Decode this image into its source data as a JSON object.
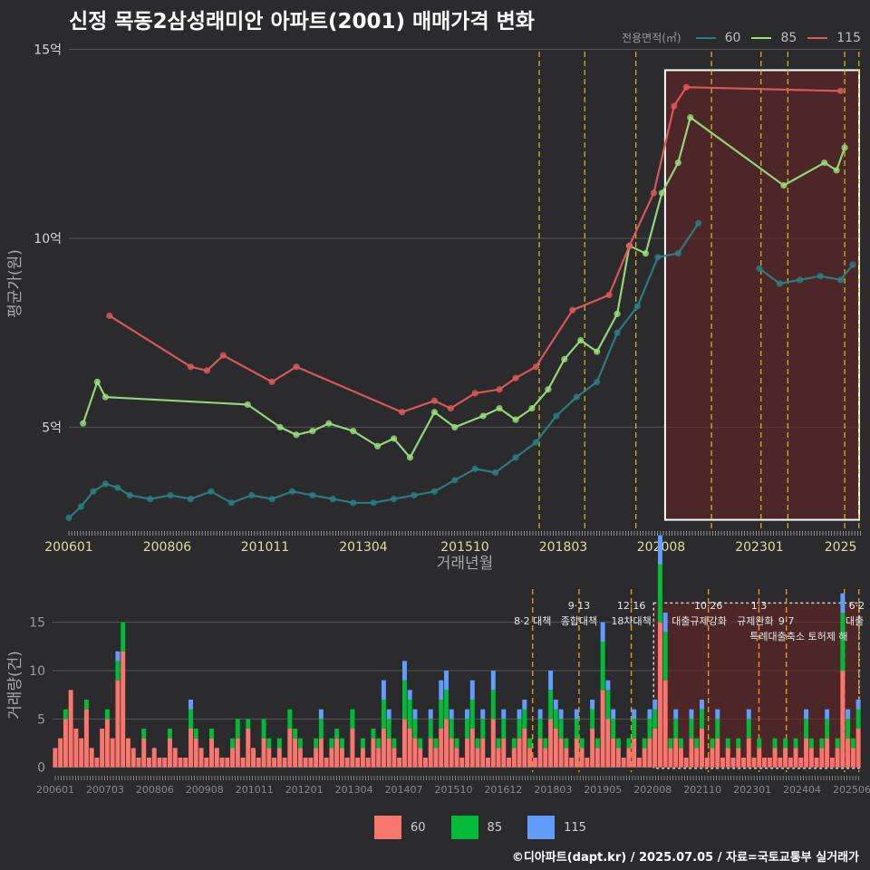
{
  "title": "신정 목동2삼성래미안 아파트(2001) 매매가격 변화",
  "legend_area": {
    "title": "전용면적(㎡)",
    "items": [
      {
        "label": "60",
        "color": "#2a7f85"
      },
      {
        "label": "85",
        "color": "#9ade7a"
      },
      {
        "label": "115",
        "color": "#e05a5a"
      }
    ]
  },
  "legend_volume": {
    "items": [
      {
        "label": "60",
        "color": "#f8766d"
      },
      {
        "label": "85",
        "color": "#00ba38"
      },
      {
        "label": "115",
        "color": "#619cff"
      }
    ]
  },
  "footer": "©디아파트(dapt.kr) / 2025.07.05 / 자료=국토교통부 실거래가",
  "chart_data": [
    {
      "type": "line",
      "name": "price",
      "xlabel": "거래년월",
      "ylabel": "평균가(원)",
      "x_tick_labels": [
        "200601",
        "200806",
        "201011",
        "201304",
        "201510",
        "201803",
        "202008",
        "202301",
        "2025"
      ],
      "x_tick_years": [
        2006.0,
        2008.42,
        2010.83,
        2013.25,
        2015.75,
        2018.17,
        2020.58,
        2023.0,
        2025.0
      ],
      "xlim": [
        2006.0,
        2025.5
      ],
      "y_ticks": [
        5,
        10,
        15
      ],
      "y_tick_labels": [
        "5억",
        "10억",
        "15억"
      ],
      "ylim": [
        2.3,
        15.3
      ],
      "highlight_period": [
        2020.5,
        2025.5
      ],
      "policy_lines": [
        2017.58,
        2018.7,
        2019.96,
        2021.82,
        2023.04,
        2023.7,
        2025.1,
        2025.45
      ],
      "series": [
        {
          "name": "60",
          "x": [
            2006.0,
            2006.3,
            2006.6,
            2006.9,
            2007.2,
            2007.5,
            2008.0,
            2008.5,
            2009.0,
            2009.5,
            2010.0,
            2010.5,
            2011.0,
            2011.5,
            2012.0,
            2012.5,
            2013.0,
            2013.5,
            2014.0,
            2014.5,
            2015.0,
            2015.5,
            2016.0,
            2016.5,
            2017.0,
            2017.5,
            2018.0,
            2018.5,
            2019.0,
            2019.5,
            2020.0,
            2020.5,
            2021.0,
            2021.5,
            2022.0,
            2022.5,
            2023.0,
            2023.5,
            2024.0,
            2024.5,
            2025.0,
            2025.3
          ],
          "y": [
            2.6,
            2.9,
            3.3,
            3.5,
            3.4,
            3.2,
            3.1,
            3.2,
            3.1,
            3.3,
            3.0,
            3.2,
            3.1,
            3.3,
            3.2,
            3.1,
            3.0,
            3.0,
            3.1,
            3.2,
            3.3,
            3.6,
            3.9,
            3.8,
            4.2,
            4.6,
            5.3,
            5.8,
            6.2,
            7.5,
            8.2,
            9.5,
            9.6,
            10.4,
            null,
            null,
            9.2,
            8.8,
            8.9,
            9.0,
            8.9,
            9.3
          ]
        },
        {
          "name": "85",
          "x": [
            2006.35,
            2006.7,
            2006.9,
            2010.4,
            2011.2,
            2011.6,
            2012.0,
            2012.4,
            2013.0,
            2013.6,
            2014.0,
            2014.4,
            2015.0,
            2015.5,
            2016.2,
            2016.6,
            2017.0,
            2017.4,
            2017.8,
            2018.2,
            2018.6,
            2019.0,
            2019.5,
            2019.8,
            2020.2,
            2020.6,
            2021.0,
            2021.3,
            2023.6,
            2024.6,
            2024.9,
            2025.1
          ],
          "y": [
            5.1,
            6.2,
            5.8,
            5.6,
            5.0,
            4.8,
            4.9,
            5.1,
            4.9,
            4.5,
            4.7,
            4.2,
            5.4,
            5.0,
            5.3,
            5.5,
            5.2,
            5.5,
            6.0,
            6.8,
            7.3,
            7.0,
            8.0,
            9.8,
            9.6,
            11.2,
            12.0,
            13.2,
            11.4,
            12.0,
            11.8,
            12.4
          ]
        },
        {
          "name": "115",
          "x": [
            2007.0,
            2009.0,
            2009.4,
            2009.8,
            2011.0,
            2011.6,
            2014.2,
            2015.0,
            2015.4,
            2016.0,
            2016.6,
            2017.0,
            2017.5,
            2018.4,
            2019.3,
            2019.8,
            2020.4,
            2020.9,
            2021.2,
            2025.0
          ],
          "y": [
            7.95,
            6.6,
            6.5,
            6.9,
            6.2,
            6.6,
            5.4,
            5.7,
            5.5,
            5.9,
            6.0,
            6.3,
            6.6,
            8.1,
            8.5,
            9.8,
            11.2,
            13.5,
            14.0,
            13.9
          ]
        }
      ]
    },
    {
      "type": "bar",
      "name": "volume",
      "ylabel": "거래량(건)",
      "y_ticks": [
        0,
        5,
        10,
        15
      ],
      "y_tick_labels": [
        "0",
        "5",
        "10",
        "15"
      ],
      "ylim": [
        -0.5,
        17.5
      ],
      "xlim": [
        2006.0,
        2025.5
      ],
      "x_tick_labels": [
        "200601",
        "200703",
        "200806",
        "200908",
        "201011",
        "201201",
        "201304",
        "201407",
        "201510",
        "201612",
        "201803",
        "201905",
        "202008",
        "202110",
        "202301",
        "202404",
        "202506"
      ],
      "highlight_period": [
        2020.5,
        2025.5
      ],
      "annotations": [
        {
          "label": "8·2 대책",
          "x": 2017.58,
          "row": 1
        },
        {
          "label": "9·13",
          "x": 2018.7,
          "row": 0
        },
        {
          "label": "종합대책",
          "x": 2018.7,
          "row": 1
        },
        {
          "label": "12·16",
          "x": 2019.96,
          "row": 0
        },
        {
          "label": "18차대책",
          "x": 2019.96,
          "row": 1
        },
        {
          "label": "10·26",
          "x": 2021.82,
          "row": 0
        },
        {
          "label": "대출규제강화",
          "x": 2021.6,
          "row": 1
        },
        {
          "label": "1·3",
          "x": 2023.04,
          "row": 0
        },
        {
          "label": "규제완화",
          "x": 2022.95,
          "row": 1
        },
        {
          "label": "9·7",
          "x": 2023.7,
          "row": 1
        },
        {
          "label": "특례대출축소 토허제 해",
          "x": 2024.0,
          "row": 2
        },
        {
          "label": "6·2",
          "x": 2025.4,
          "row": 0
        },
        {
          "label": "대출",
          "x": 2025.35,
          "row": 1
        }
      ],
      "series": [
        {
          "name": "60",
          "values": [
            2,
            3,
            5,
            8,
            4,
            3,
            6,
            2,
            1,
            4,
            5,
            3,
            9,
            12,
            3,
            2,
            1,
            3,
            1,
            2,
            1,
            1,
            3,
            2,
            1,
            1,
            4,
            3,
            2,
            1,
            3,
            2,
            1,
            1,
            2,
            3,
            1,
            4,
            2,
            1,
            3,
            2,
            1,
            2,
            1,
            4,
            3,
            2,
            1,
            1,
            2,
            3,
            1,
            2,
            3,
            2,
            1,
            4,
            1,
            2,
            1,
            3,
            2,
            4,
            3,
            2,
            1,
            5,
            4,
            3,
            2,
            1,
            3,
            2,
            4,
            5,
            3,
            2,
            1,
            3,
            4,
            2,
            3,
            1,
            5,
            2,
            3,
            1,
            2,
            3,
            4,
            2,
            1,
            3,
            2,
            5,
            4,
            3,
            2,
            1,
            3,
            2,
            1,
            4,
            2,
            8,
            5,
            3,
            2,
            1,
            2,
            3,
            1,
            2,
            3,
            4,
            15,
            9,
            2,
            3,
            2,
            1,
            3,
            2,
            4,
            1,
            2,
            3,
            1,
            2,
            1,
            2,
            1,
            3,
            1,
            2,
            1,
            1,
            2,
            1,
            2,
            1,
            2,
            1,
            3,
            2,
            1,
            2,
            3,
            1,
            2,
            10,
            3,
            2,
            4
          ]
        },
        {
          "name": "85",
          "values": [
            0,
            0,
            1,
            0,
            0,
            0,
            1,
            0,
            0,
            0,
            1,
            0,
            2,
            3,
            0,
            0,
            0,
            1,
            0,
            0,
            0,
            0,
            1,
            0,
            0,
            0,
            2,
            1,
            0,
            0,
            1,
            0,
            0,
            0,
            1,
            2,
            0,
            1,
            0,
            0,
            2,
            1,
            0,
            1,
            0,
            2,
            1,
            1,
            0,
            0,
            1,
            2,
            0,
            1,
            1,
            1,
            0,
            2,
            0,
            1,
            0,
            1,
            1,
            3,
            2,
            1,
            0,
            4,
            3,
            2,
            1,
            0,
            2,
            1,
            3,
            3,
            2,
            1,
            0,
            2,
            3,
            1,
            2,
            0,
            3,
            1,
            2,
            0,
            1,
            2,
            2,
            1,
            0,
            2,
            1,
            3,
            2,
            2,
            1,
            0,
            2,
            1,
            0,
            2,
            1,
            5,
            3,
            2,
            1,
            0,
            1,
            2,
            0,
            1,
            2,
            2,
            6,
            5,
            1,
            2,
            1,
            0,
            2,
            1,
            2,
            0,
            1,
            2,
            0,
            1,
            0,
            1,
            0,
            2,
            0,
            1,
            0,
            0,
            1,
            0,
            1,
            0,
            1,
            0,
            2,
            1,
            0,
            1,
            2,
            0,
            1,
            6,
            2,
            1,
            2
          ]
        },
        {
          "name": "115",
          "values": [
            0,
            0,
            0,
            0,
            0,
            0,
            0,
            0,
            0,
            0,
            0,
            0,
            1,
            0,
            0,
            0,
            0,
            0,
            0,
            0,
            0,
            0,
            0,
            0,
            0,
            0,
            1,
            0,
            0,
            0,
            0,
            0,
            0,
            0,
            0,
            0,
            0,
            0,
            0,
            0,
            0,
            0,
            0,
            0,
            0,
            0,
            0,
            0,
            0,
            0,
            0,
            1,
            0,
            0,
            0,
            0,
            0,
            0,
            0,
            0,
            0,
            0,
            0,
            2,
            1,
            0,
            0,
            2,
            1,
            1,
            0,
            0,
            1,
            0,
            2,
            2,
            1,
            0,
            0,
            1,
            2,
            0,
            1,
            0,
            2,
            0,
            1,
            0,
            0,
            1,
            1,
            0,
            0,
            1,
            0,
            2,
            1,
            1,
            0,
            0,
            1,
            0,
            0,
            1,
            0,
            2,
            1,
            1,
            0,
            0,
            0,
            1,
            0,
            0,
            1,
            1,
            3,
            2,
            0,
            1,
            0,
            0,
            1,
            0,
            1,
            0,
            0,
            1,
            0,
            0,
            0,
            0,
            0,
            1,
            0,
            0,
            0,
            0,
            0,
            0,
            0,
            0,
            0,
            0,
            1,
            0,
            0,
            0,
            1,
            0,
            0,
            2,
            1,
            0,
            1
          ]
        }
      ]
    }
  ]
}
